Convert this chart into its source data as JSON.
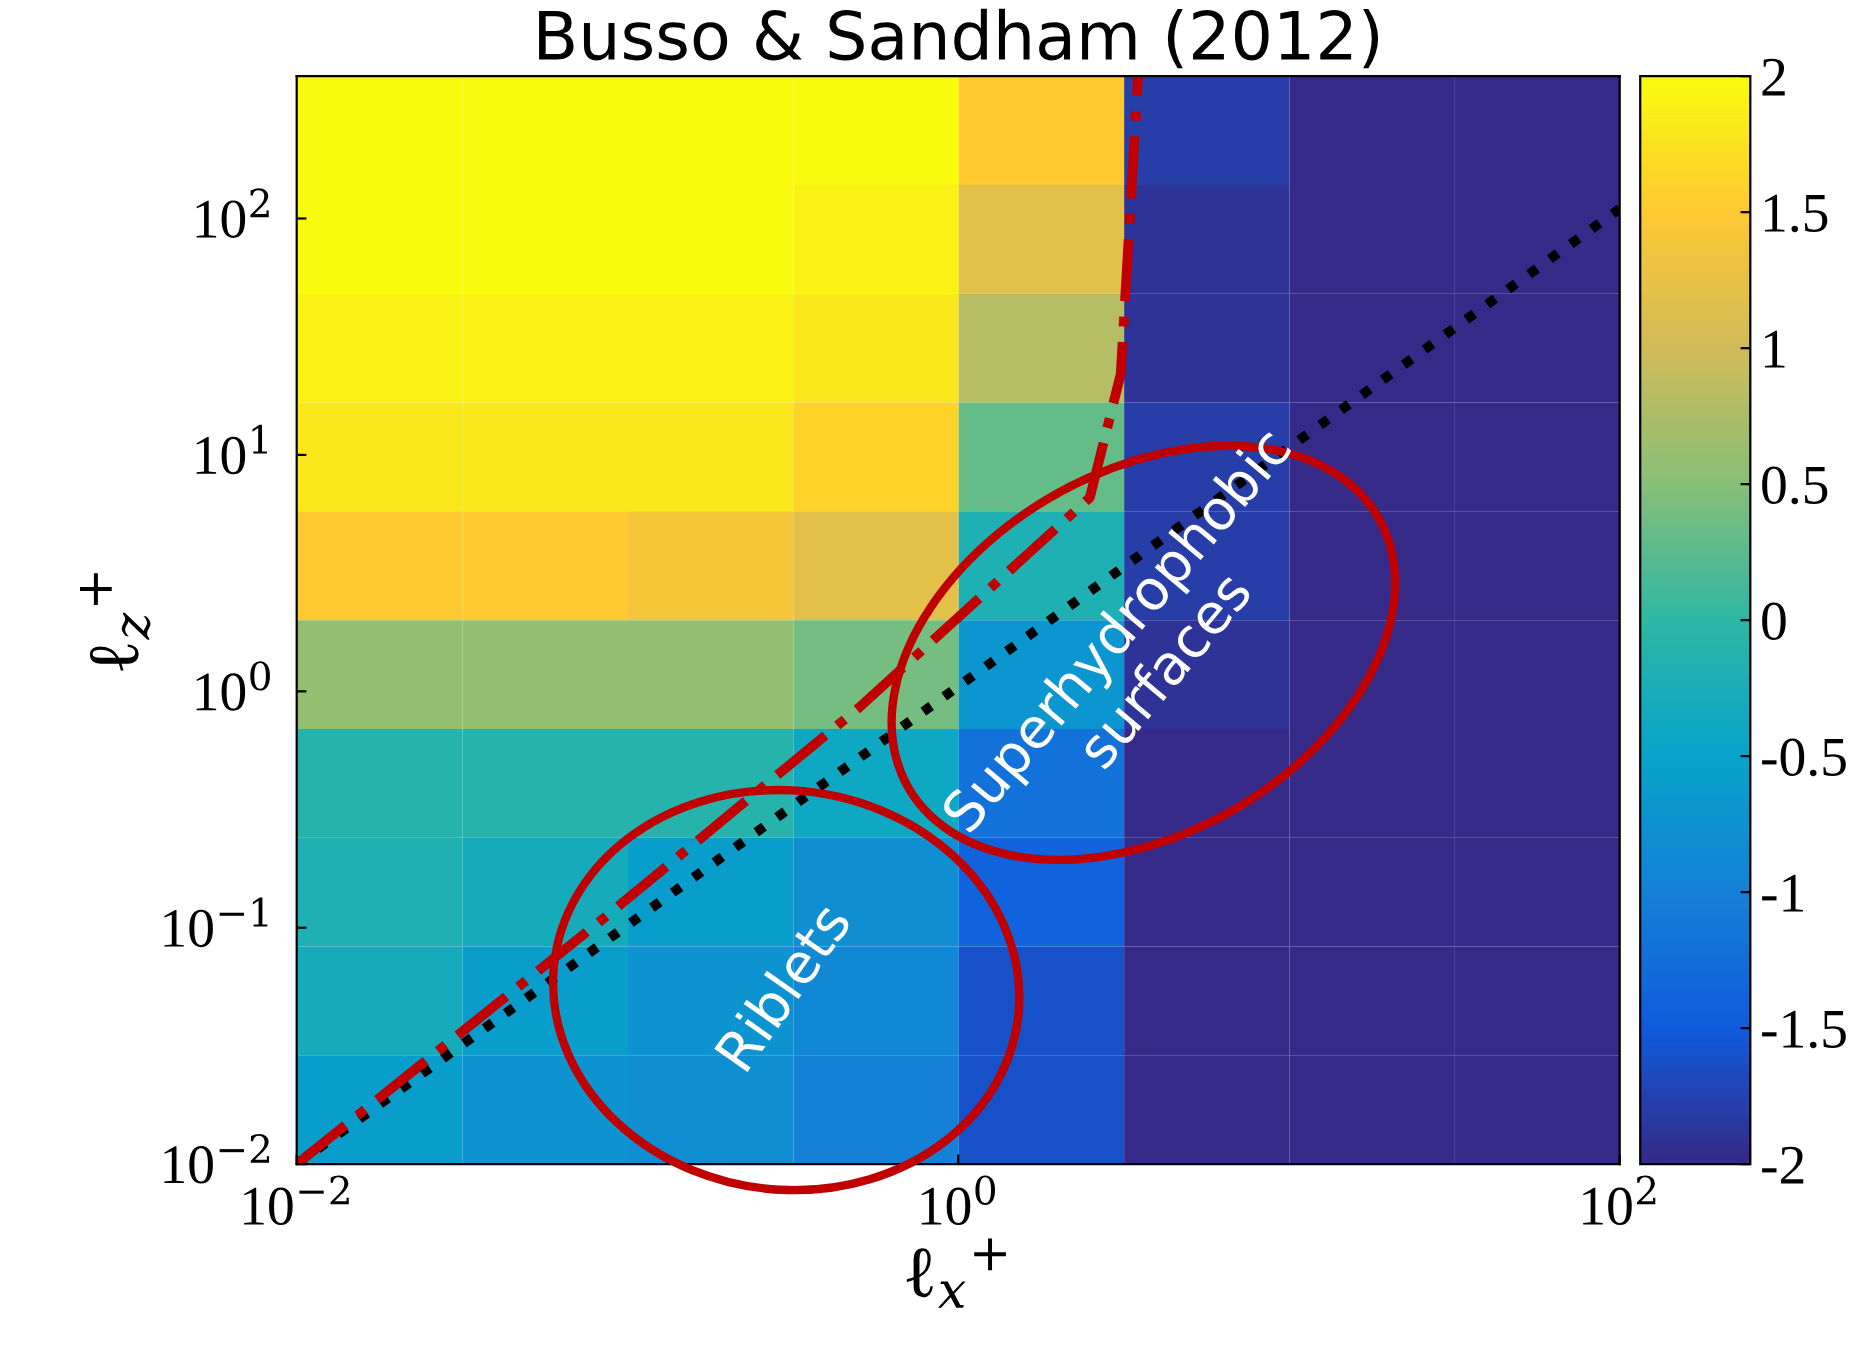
{
  "chart_data": {
    "type": "heatmap",
    "title": "Busso & Sandham (2012)",
    "xlabel": "ℓ$_{x}$$^{+}$",
    "ylabel": "ℓ$_{z}$$^{+}$",
    "log": "xy",
    "xlim": [
      0.01,
      100
    ],
    "ylim": [
      0.01,
      400
    ],
    "xticks": [
      {
        "value": 0.01,
        "label": "10$^{−2}$"
      },
      {
        "value": 1,
        "label": "10$^{0}$"
      },
      {
        "value": 100,
        "label": "10$^{2}$"
      }
    ],
    "yticks": [
      {
        "value": 0.01,
        "label": "10$^{−2}$"
      },
      {
        "value": 0.1,
        "label": "10$^{−1}$"
      },
      {
        "value": 1,
        "label": "10$^{0}$"
      },
      {
        "value": 10,
        "label": "10$^{1}$"
      },
      {
        "value": 100,
        "label": "10$^{2}$"
      }
    ],
    "x": [
      0.018,
      0.056,
      0.18,
      0.56,
      1.8,
      5.6,
      18,
      56
    ],
    "cells": [
      [
        2,
        2,
        2,
        2,
        1.5,
        -1.8,
        -2,
        -2
      ],
      [
        2,
        2,
        2,
        1.9,
        1.2,
        -1.9,
        -2,
        -2
      ],
      [
        1.9,
        1.9,
        1.9,
        1.8,
        0.8,
        -1.9,
        -2,
        -2
      ],
      [
        1.8,
        1.8,
        1.8,
        1.6,
        0.3,
        -1.8,
        -2,
        -2
      ],
      [
        1.5,
        1.5,
        1.4,
        1.2,
        -0.2,
        -1.8,
        -2,
        -2
      ],
      [
        0.6,
        0.6,
        0.6,
        0.4,
        -0.7,
        -1.9,
        -2,
        -2
      ],
      [
        -0.1,
        -0.1,
        -0.1,
        -0.4,
        -1.2,
        -2,
        -2,
        -2
      ],
      [
        -0.2,
        -0.3,
        -0.6,
        -0.8,
        -1.4,
        -2,
        -2,
        -2
      ],
      [
        -0.3,
        -0.6,
        -0.75,
        -0.9,
        -1.6,
        -2,
        -2,
        -2
      ],
      [
        -0.6,
        -0.75,
        -0.8,
        -1,
        -1.6,
        -2,
        -2,
        -2
      ]
    ],
    "colors": [
      "#352a87",
      "#0f5cdd",
      "#1481d6",
      "#06a4ca",
      "#2eb7a4",
      "#87bf77",
      "#d1bb59",
      "#fec832",
      "#f9fb0e"
    ],
    "clim": [
      -2,
      2
    ],
    "cticks": [
      {
        "value": -2,
        "label": "-2"
      },
      {
        "value": -1.5,
        "label": "-1.5"
      },
      {
        "value": -1,
        "label": "-1"
      },
      {
        "value": -0.5,
        "label": "-0.5"
      },
      0,
      0.5,
      1,
      1.5,
      2
    ],
    "series": [
      {
        "type": "line",
        "x": [
          0.01,
          100
        ],
        "values": [
          0.01,
          110
        ],
        "color": "#000000",
        "line_style": "dotted"
      },
      {
        "type": "line",
        "x": [
          0.01,
          0.083,
          0.5,
          2.5,
          3.1,
          3.5
        ],
        "values": [
          0.01,
          0.107,
          0.85,
          6.6,
          22,
          400
        ],
        "color": "#c00000",
        "line_style": "dashdot"
      }
    ],
    "annotations": [
      "Riblets",
      "Superhydrophobic\nsurfaces"
    ]
  }
}
